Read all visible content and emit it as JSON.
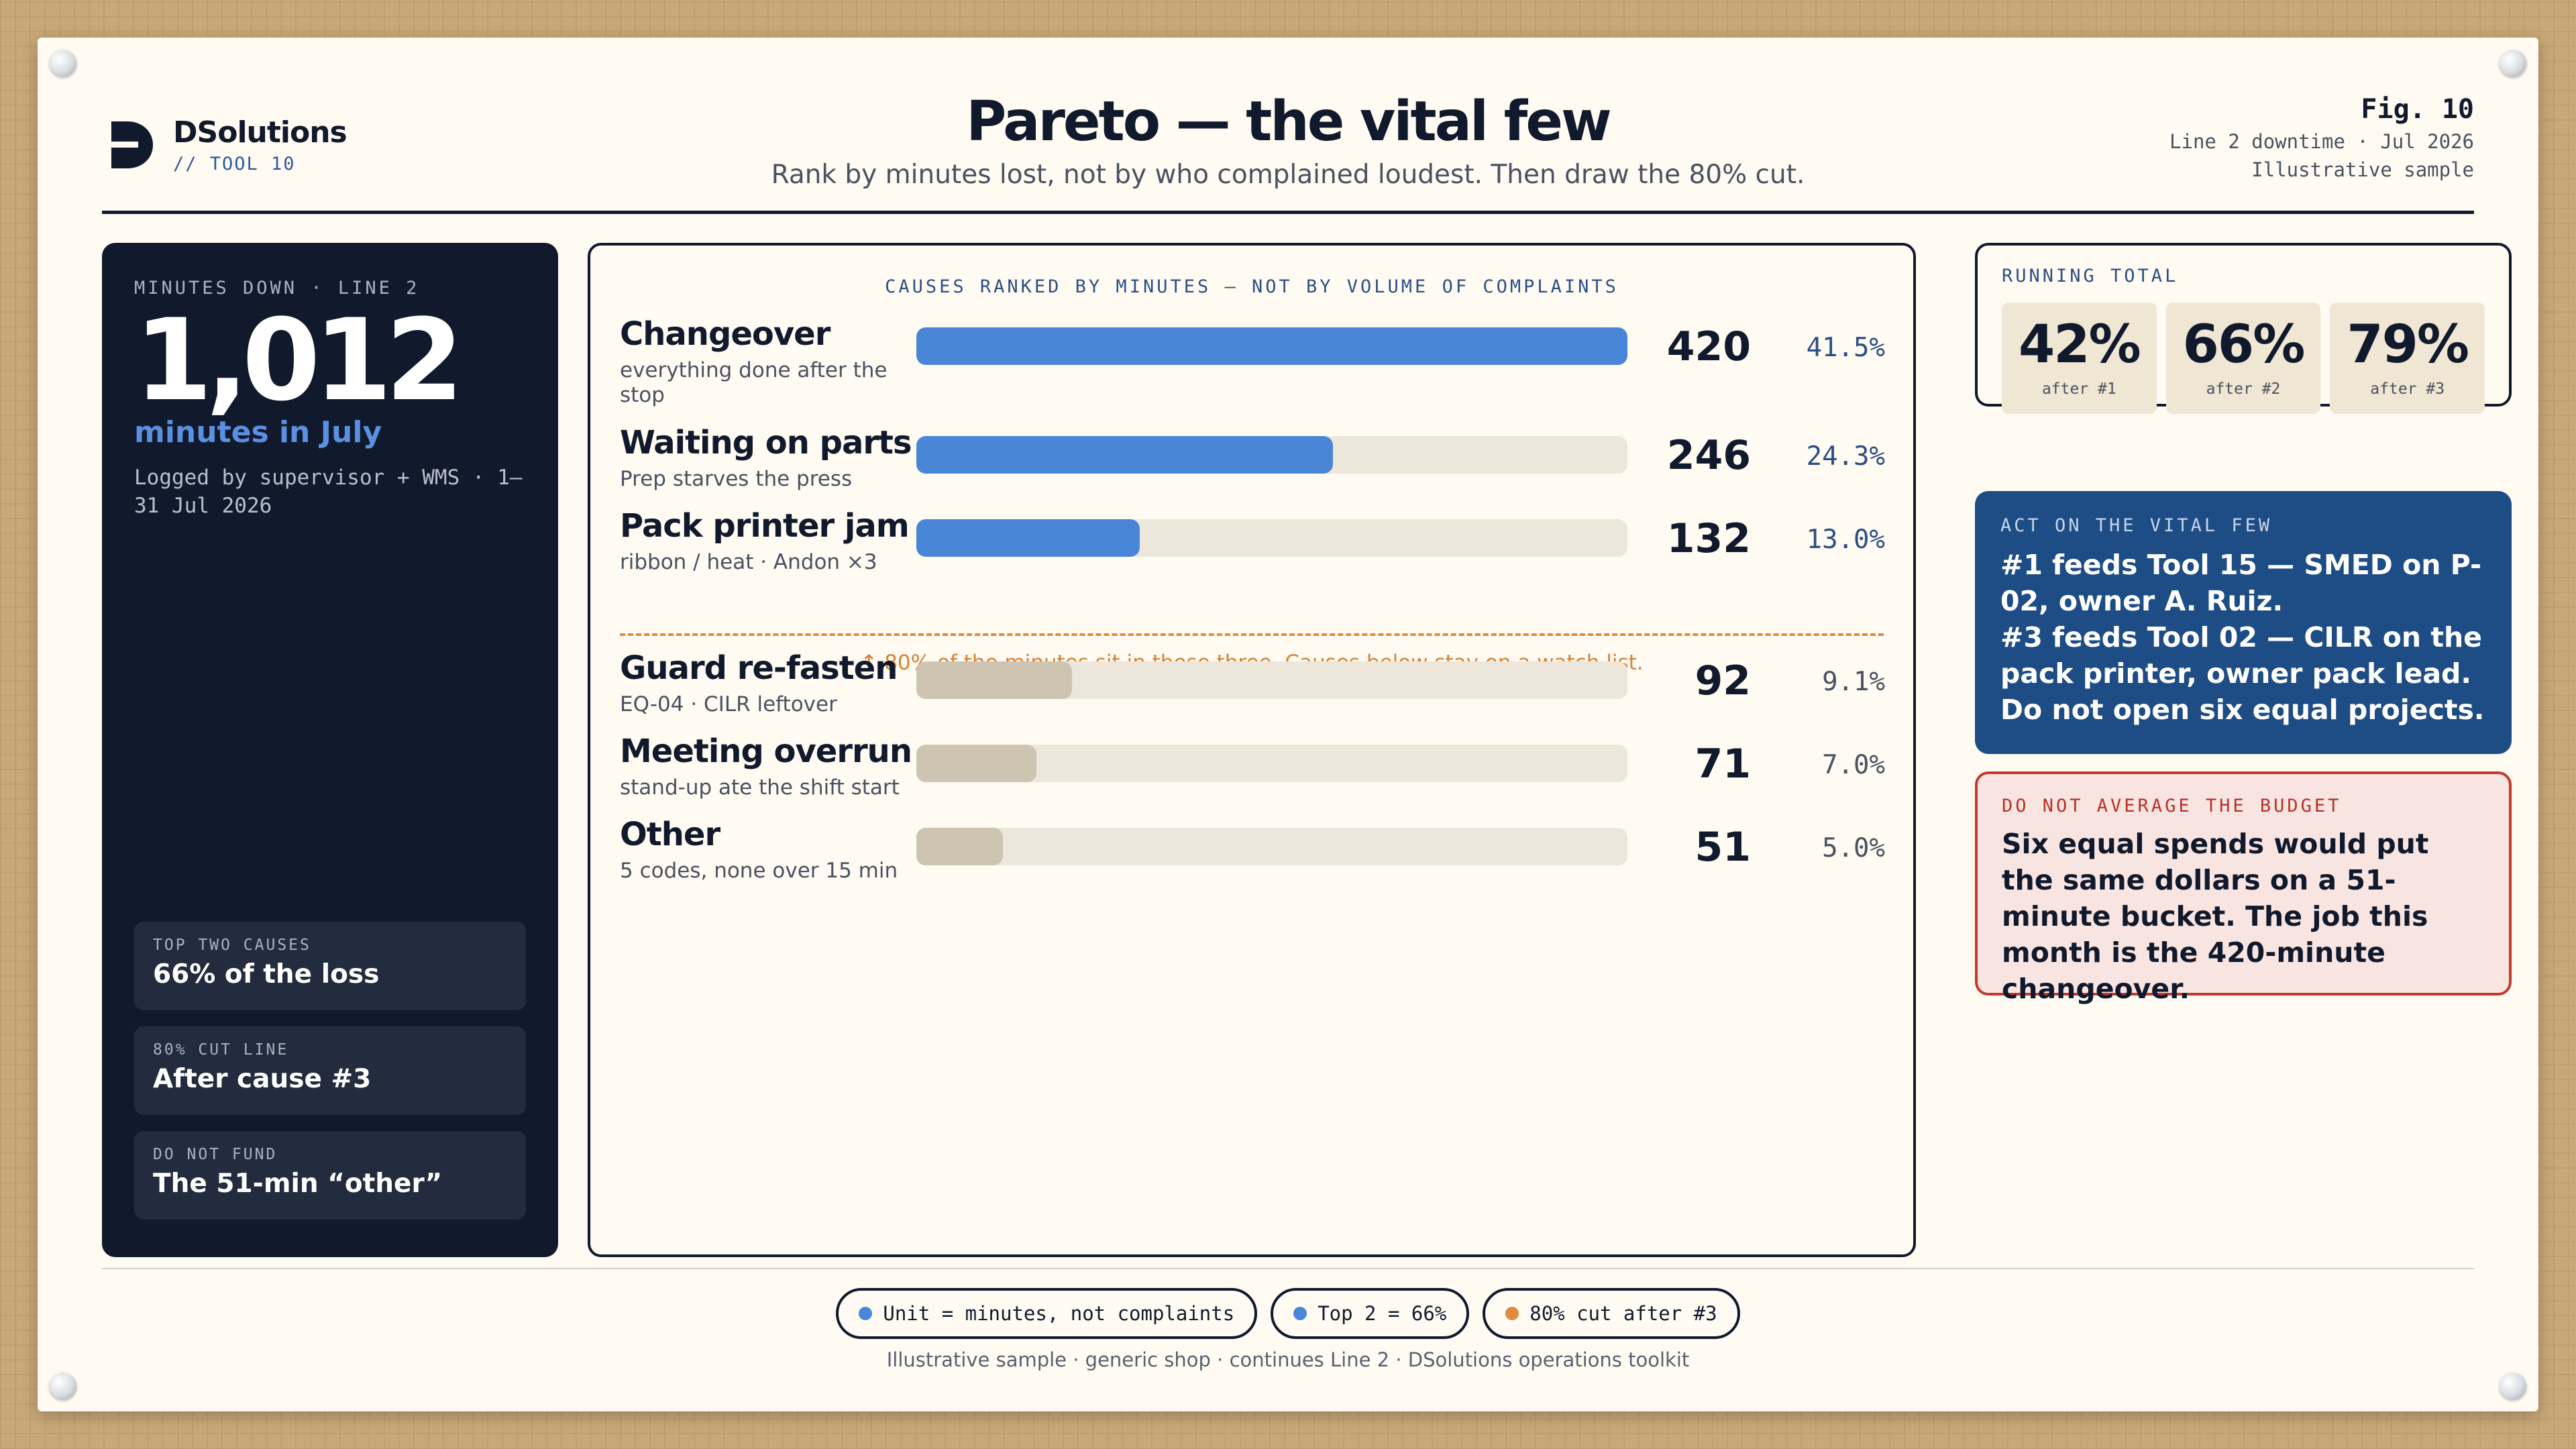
{
  "header": {
    "brand": "DSolutions",
    "tool": "// TOOL 10",
    "title": "Pareto — the vital few",
    "subtitle": "Rank by minutes lost, not by who complained loudest. Then draw the 80% cut.",
    "fig": "Fig. 10",
    "fig_line1": "Line 2 downtime · Jul 2026",
    "fig_line2": "Illustrative sample"
  },
  "left": {
    "label": "MINUTES DOWN · LINE 2",
    "big": "1,012",
    "big_sub": "minutes in July",
    "note": "Logged by supervisor + WMS · 1–31 Jul 2026",
    "tiles": [
      {
        "k": "TOP TWO CAUSES",
        "v": "66% of the loss"
      },
      {
        "k": "80% CUT LINE",
        "v": "After cause #3"
      },
      {
        "k": "DO NOT FUND",
        "v": "The 51-min “other”"
      }
    ]
  },
  "chart_head": "CAUSES RANKED BY MINUTES — NOT BY VOLUME OF COMPLAINTS",
  "cut_note": "↑ 80% of the minutes sit in these three. Causes below stay on a watch list.",
  "chart_data": {
    "type": "bar",
    "orientation": "horizontal",
    "unit": "minutes",
    "total": 1012,
    "cut_after_index": 2,
    "bars": [
      {
        "name": "Changeover",
        "desc": "everything done after the stop",
        "value": 420,
        "pct": "41.5%",
        "group": "vital"
      },
      {
        "name": "Waiting on parts",
        "desc": "Prep starves the press",
        "value": 246,
        "pct": "24.3%",
        "group": "vital"
      },
      {
        "name": "Pack printer jam",
        "desc": "ribbon / heat · Andon ×3",
        "value": 132,
        "pct": "13.0%",
        "group": "vital"
      },
      {
        "name": "Guard re-fasten",
        "desc": "EQ-04 · CILR leftover",
        "value": 92,
        "pct": "9.1%",
        "group": "watch"
      },
      {
        "name": "Meeting overrun",
        "desc": "stand-up ate the shift start",
        "value": 71,
        "pct": "7.0%",
        "group": "watch"
      },
      {
        "name": "Other",
        "desc": "5 codes, none over 15 min",
        "value": 51,
        "pct": "5.0%",
        "group": "watch"
      }
    ],
    "colors": {
      "vital": "#4a86d8",
      "watch": "#cdc4b2",
      "track": "#ede7db",
      "cut": "#e08a3c"
    }
  },
  "running": {
    "label": "RUNNING TOTAL",
    "items": [
      {
        "v": "42%",
        "k": "after #1"
      },
      {
        "v": "66%",
        "k": "after #2"
      },
      {
        "v": "79%",
        "k": "after #3"
      }
    ]
  },
  "act": {
    "label": "ACT ON THE VITAL FEW",
    "line1": "#1 feeds Tool 15 — SMED on P-02, owner A. Ruiz.",
    "line2": "#3 feeds Tool 02 — CILR on the pack printer, owner pack lead.",
    "line3": "Do not open six equal projects."
  },
  "warn": {
    "label": "DO NOT AVERAGE THE BUDGET",
    "text": "Six equal spends would put the same dollars on a 51-minute bucket. The job this month is the 420-minute changeover."
  },
  "footer": {
    "chips": [
      {
        "text": "Unit = minutes, not complaints",
        "color": "#4a86d8"
      },
      {
        "text": "Top 2 = 66%",
        "color": "#4a86d8"
      },
      {
        "text": "80% cut after #3",
        "color": "#e08a3c"
      }
    ],
    "note": "Illustrative sample · generic shop · continues Line 2 · DSolutions operations toolkit"
  }
}
